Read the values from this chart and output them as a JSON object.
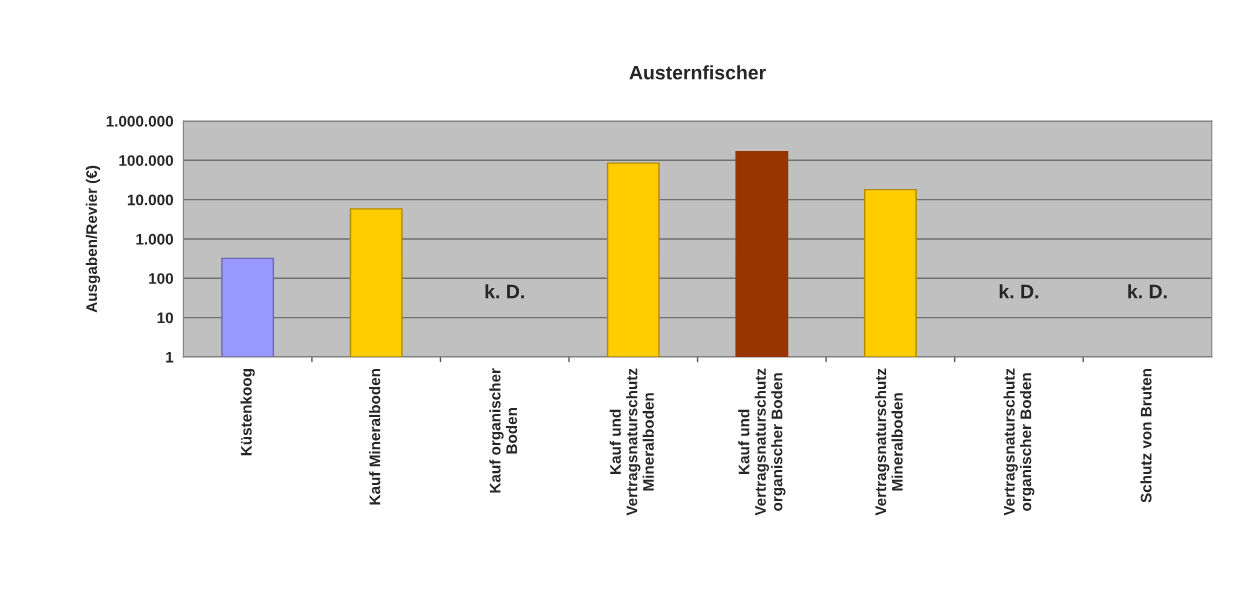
{
  "chart_data": {
    "type": "bar",
    "title": "Austernfischer",
    "ylabel": "Ausgaben/Revier (€)",
    "categories": [
      "Küstenkoog",
      "Kauf Mineralboden",
      "Kauf organischer\nBoden",
      "Kauf und\nVertragsnaturschutz\nMineralboden",
      "Kauf und\nVertragsnaturschutz\norganischer Boden",
      "Vertragsnaturschutz\nMineralboden",
      "Vertragsnaturschutz\norganischer Boden",
      "Schutz von Bruten"
    ],
    "values": [
      320,
      5800,
      null,
      85000,
      165000,
      18000,
      null,
      null
    ],
    "colors": [
      "#9999ff",
      "#ffcc00",
      "#ffcc00",
      "#ffcc00",
      "#993300",
      "#ffcc00",
      "#ffcc00",
      "#ffcc00"
    ],
    "log": true,
    "ylim": [
      1,
      1000000
    ],
    "yticks": [
      1,
      10,
      100,
      {
        "value": 1000,
        "label": "1.000"
      },
      {
        "value": 10000,
        "label": "10.000"
      },
      {
        "value": 100000,
        "label": "100.000"
      },
      {
        "value": 1000000,
        "label": "1.000.000"
      }
    ],
    "grid": "y",
    "annotations": [
      "k. D.",
      "k. D.",
      "k. D."
    ]
  }
}
